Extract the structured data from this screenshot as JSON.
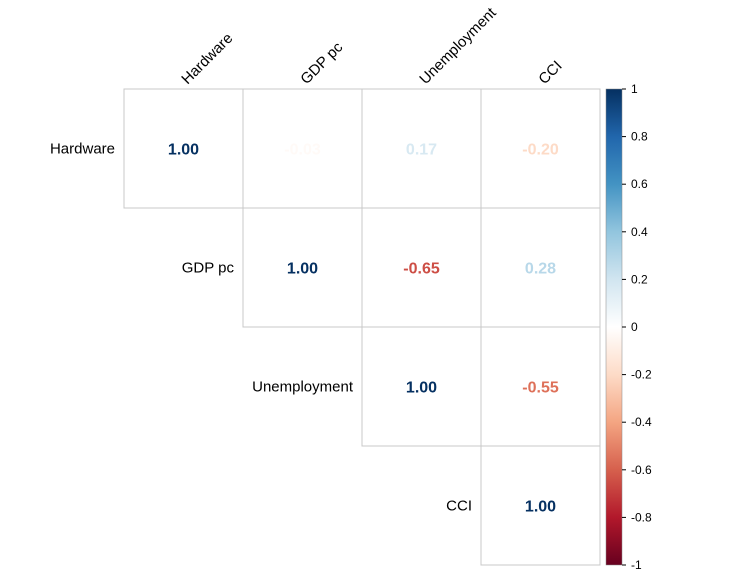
{
  "chart_data": {
    "type": "heatmap",
    "variables": [
      "Hardware",
      "GDP pc",
      "Unemployment",
      "CCI"
    ],
    "matrix": [
      [
        1.0,
        -0.03,
        0.17,
        -0.2
      ],
      [
        -0.03,
        1.0,
        -0.65,
        0.28
      ],
      [
        0.17,
        -0.65,
        1.0,
        -0.55
      ],
      [
        -0.2,
        0.28,
        -0.55,
        1.0
      ]
    ],
    "value_labels": [
      [
        "1.00",
        "-0.03",
        "0.17",
        "-0.20"
      ],
      [
        "-0.03",
        "1.00",
        "-0.65",
        "0.28"
      ],
      [
        "0.17",
        "-0.65",
        "1.00",
        "-0.55"
      ],
      [
        "-0.20",
        "0.28",
        "-0.55",
        "1.00"
      ]
    ],
    "display": "upper-triangle-numbers",
    "color_scale": {
      "range": [
        -1,
        1
      ],
      "ticks": [
        "1",
        "0.8",
        "0.6",
        "0.4",
        "0.2",
        "0",
        "-0.2",
        "-0.4",
        "-0.6",
        "-0.8",
        "-1"
      ],
      "colors": [
        "#67001F",
        "#B2182B",
        "#D6604D",
        "#F4A582",
        "#FDDBC7",
        "#FFFFFF",
        "#D1E5F0",
        "#92C5DE",
        "#4393C3",
        "#2166AC",
        "#053061"
      ]
    },
    "legend_placement": "right",
    "grid": true
  }
}
